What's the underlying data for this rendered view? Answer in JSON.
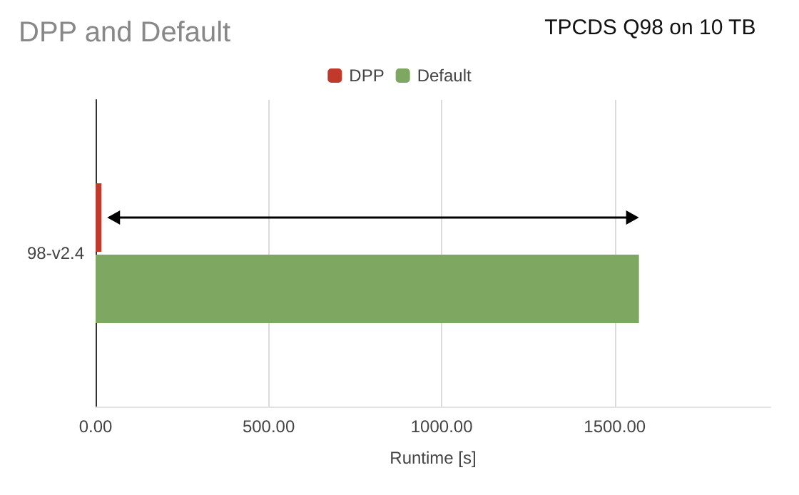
{
  "chart_data": {
    "type": "bar",
    "orientation": "horizontal",
    "title": "DPP and Default",
    "xlabel": "Runtime [s]",
    "annotations": [
      "TPCDS Q98 on 10 TB"
    ],
    "categories": [
      "98-v2.4"
    ],
    "series": [
      {
        "name": "DPP",
        "color": "#c0392b",
        "values": [
          17
        ]
      },
      {
        "name": "Default",
        "color": "#7ea862",
        "values": [
          1570
        ]
      }
    ],
    "xlim": [
      0,
      1950
    ],
    "xticks": [
      {
        "value": 0,
        "label": "0.00"
      },
      {
        "value": 500,
        "label": "500.00"
      },
      {
        "value": 1000,
        "label": "1000.00"
      },
      {
        "value": 1500,
        "label": "1500.00"
      }
    ],
    "grid": "x",
    "legend": "top"
  }
}
